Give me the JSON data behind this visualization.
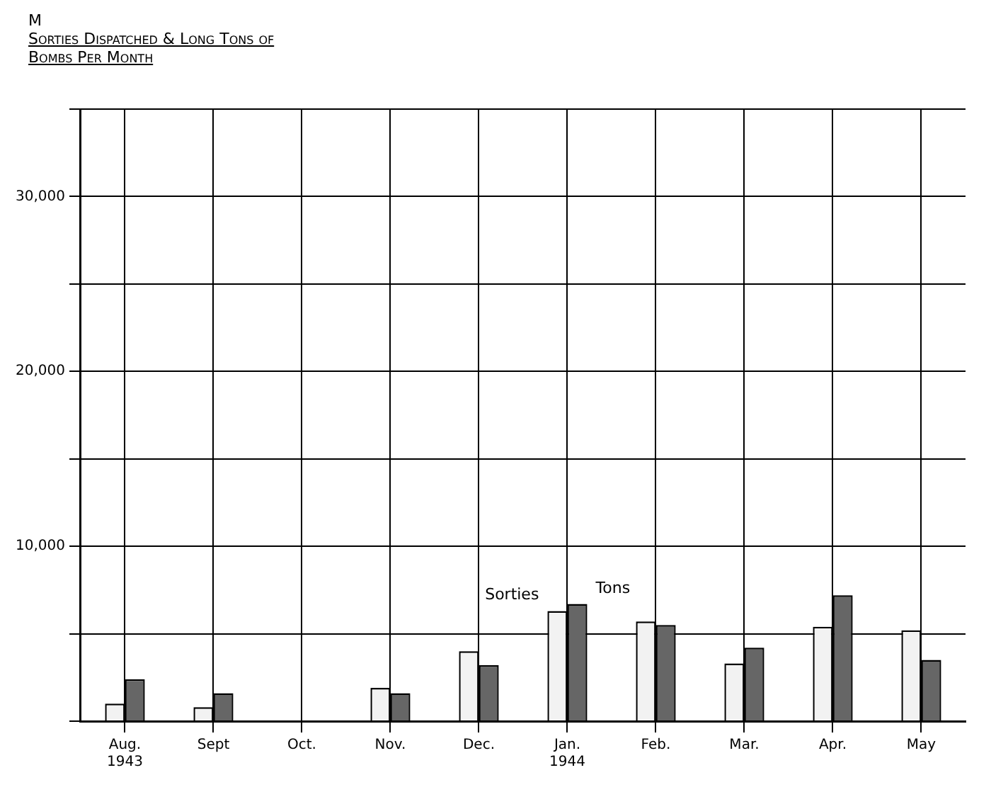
{
  "chart_data": {
    "type": "bar",
    "title": "Sorties Dispatched & Long Tons of Bombs Per Month",
    "annotations": [
      "M"
    ],
    "categories": [
      "Aug. 1943",
      "Sept",
      "Oct.",
      "Nov.",
      "Dec.",
      "Jan. 1944",
      "Feb.",
      "Mar.",
      "Apr.",
      "May"
    ],
    "series": [
      {
        "name": "Sorties",
        "color": "#f2f2f2",
        "values": [
          1000,
          800,
          null,
          1900,
          4000,
          6300,
          5700,
          3300,
          5400,
          5200
        ]
      },
      {
        "name": "Tons",
        "color": "#666666",
        "values": [
          2400,
          1600,
          null,
          1600,
          3200,
          6700,
          5500,
          4200,
          7200,
          3500
        ]
      }
    ],
    "ylim": [
      0,
      35000
    ],
    "yticks": [
      {
        "value": 0,
        "label": null
      },
      {
        "value": 5000,
        "label": null
      },
      {
        "value": 10000,
        "label": "10,000"
      },
      {
        "value": 15000,
        "label": null
      },
      {
        "value": 20000,
        "label": "20,000"
      },
      {
        "value": 25000,
        "label": null
      },
      {
        "value": 30000,
        "label": "30,000"
      },
      {
        "value": 35000,
        "label": null
      }
    ],
    "grid": true,
    "legend": false
  }
}
